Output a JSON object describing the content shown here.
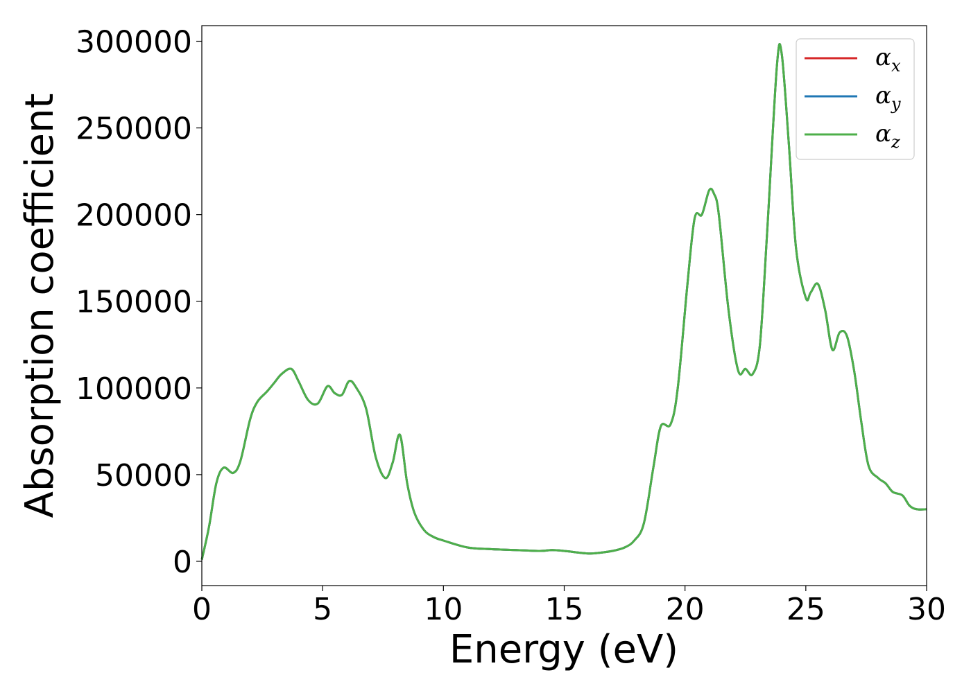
{
  "chart_data": {
    "type": "line",
    "title": "",
    "xlabel": "Energy (eV)",
    "ylabel": "Absorption coefficient",
    "xlim": [
      0,
      30
    ],
    "ylim": [
      -14000,
      309000
    ],
    "xticks": [
      0,
      5,
      10,
      15,
      20,
      25,
      30
    ],
    "yticks": [
      0,
      50000,
      100000,
      150000,
      200000,
      250000,
      300000
    ],
    "grid": false,
    "legend_position": "top-right",
    "legend": [
      {
        "label": "α",
        "sub": "x",
        "color": "#d62728"
      },
      {
        "label": "α",
        "sub": "y",
        "color": "#1f77b4"
      },
      {
        "label": "α",
        "sub": "z",
        "color": "#4daf4a"
      }
    ],
    "x": [
      0,
      0.3,
      0.6,
      0.9,
      1.3,
      1.6,
      2.0,
      2.3,
      2.7,
      3.0,
      3.3,
      3.7,
      4.0,
      4.4,
      4.8,
      5.2,
      5.5,
      5.8,
      6.1,
      6.4,
      6.8,
      7.2,
      7.6,
      7.9,
      8.2,
      8.5,
      8.8,
      9.2,
      9.6,
      10,
      11,
      12,
      13,
      14,
      14.5,
      15,
      16,
      16.5,
      17,
      17.5,
      17.9,
      18.3,
      18.7,
      19.0,
      19.4,
      19.7,
      20.1,
      20.4,
      20.7,
      21.0,
      21.2,
      21.4,
      21.8,
      22.2,
      22.5,
      22.8,
      23.1,
      23.4,
      23.8,
      24.0,
      24.3,
      24.6,
      25.0,
      25.2,
      25.5,
      25.8,
      26.1,
      26.4,
      26.7,
      27.0,
      27.3,
      27.6,
      28.0,
      28.3,
      28.6,
      29.0,
      29.3,
      29.6,
      30.0
    ],
    "series": [
      {
        "values": [
          1000,
          20000,
          45000,
          54000,
          51000,
          58000,
          82000,
          92000,
          98000,
          103000,
          108000,
          111000,
          104000,
          93000,
          91000,
          101000,
          97000,
          96000,
          104000,
          100000,
          88000,
          60000,
          48000,
          57000,
          73000,
          45000,
          28000,
          18000,
          14000,
          12000,
          8000,
          7000,
          6500,
          6000,
          6500,
          6000,
          4500,
          5000,
          6000,
          8000,
          12000,
          22000,
          55000,
          78000,
          79000,
          100000,
          160000,
          198000,
          200000,
          214000,
          212000,
          200000,
          145000,
          110000,
          111000,
          108000,
          125000,
          190000,
          285000,
          293000,
          240000,
          180000,
          152000,
          155000,
          160000,
          145000,
          122000,
          132000,
          130000,
          110000,
          80000,
          55000,
          48000,
          45000,
          40000,
          38000,
          32000,
          30000,
          30000
        ]
      },
      {
        "values": [
          1000,
          20000,
          45000,
          54000,
          51000,
          58000,
          82000,
          92000,
          98000,
          103000,
          108000,
          111000,
          104000,
          93000,
          91000,
          101000,
          97000,
          96000,
          104000,
          100000,
          88000,
          60000,
          48000,
          57000,
          73000,
          45000,
          28000,
          18000,
          14000,
          12000,
          8000,
          7000,
          6500,
          6000,
          6500,
          6000,
          4500,
          5000,
          6000,
          8000,
          12000,
          22000,
          55000,
          78000,
          79000,
          100000,
          160000,
          198000,
          200000,
          214000,
          212000,
          200000,
          145000,
          110000,
          111000,
          108000,
          125000,
          190000,
          285000,
          293000,
          240000,
          180000,
          152000,
          155000,
          160000,
          145000,
          122000,
          132000,
          130000,
          110000,
          80000,
          55000,
          48000,
          45000,
          40000,
          38000,
          32000,
          30000,
          30000
        ]
      },
      {
        "values": [
          1000,
          20000,
          45000,
          54000,
          51000,
          58000,
          82000,
          92000,
          98000,
          103000,
          108000,
          111000,
          104000,
          93000,
          91000,
          101000,
          97000,
          96000,
          104000,
          100000,
          88000,
          60000,
          48000,
          57000,
          73000,
          45000,
          28000,
          18000,
          14000,
          12000,
          8000,
          7000,
          6500,
          6000,
          6500,
          6000,
          4500,
          5000,
          6000,
          8000,
          12000,
          22000,
          55000,
          78000,
          79000,
          100000,
          160000,
          198000,
          200000,
          214000,
          212000,
          200000,
          145000,
          110000,
          111000,
          108000,
          125000,
          190000,
          285000,
          293000,
          240000,
          180000,
          152000,
          155000,
          160000,
          145000,
          122000,
          132000,
          130000,
          110000,
          80000,
          55000,
          48000,
          45000,
          40000,
          38000,
          32000,
          30000,
          30000
        ]
      }
    ]
  }
}
